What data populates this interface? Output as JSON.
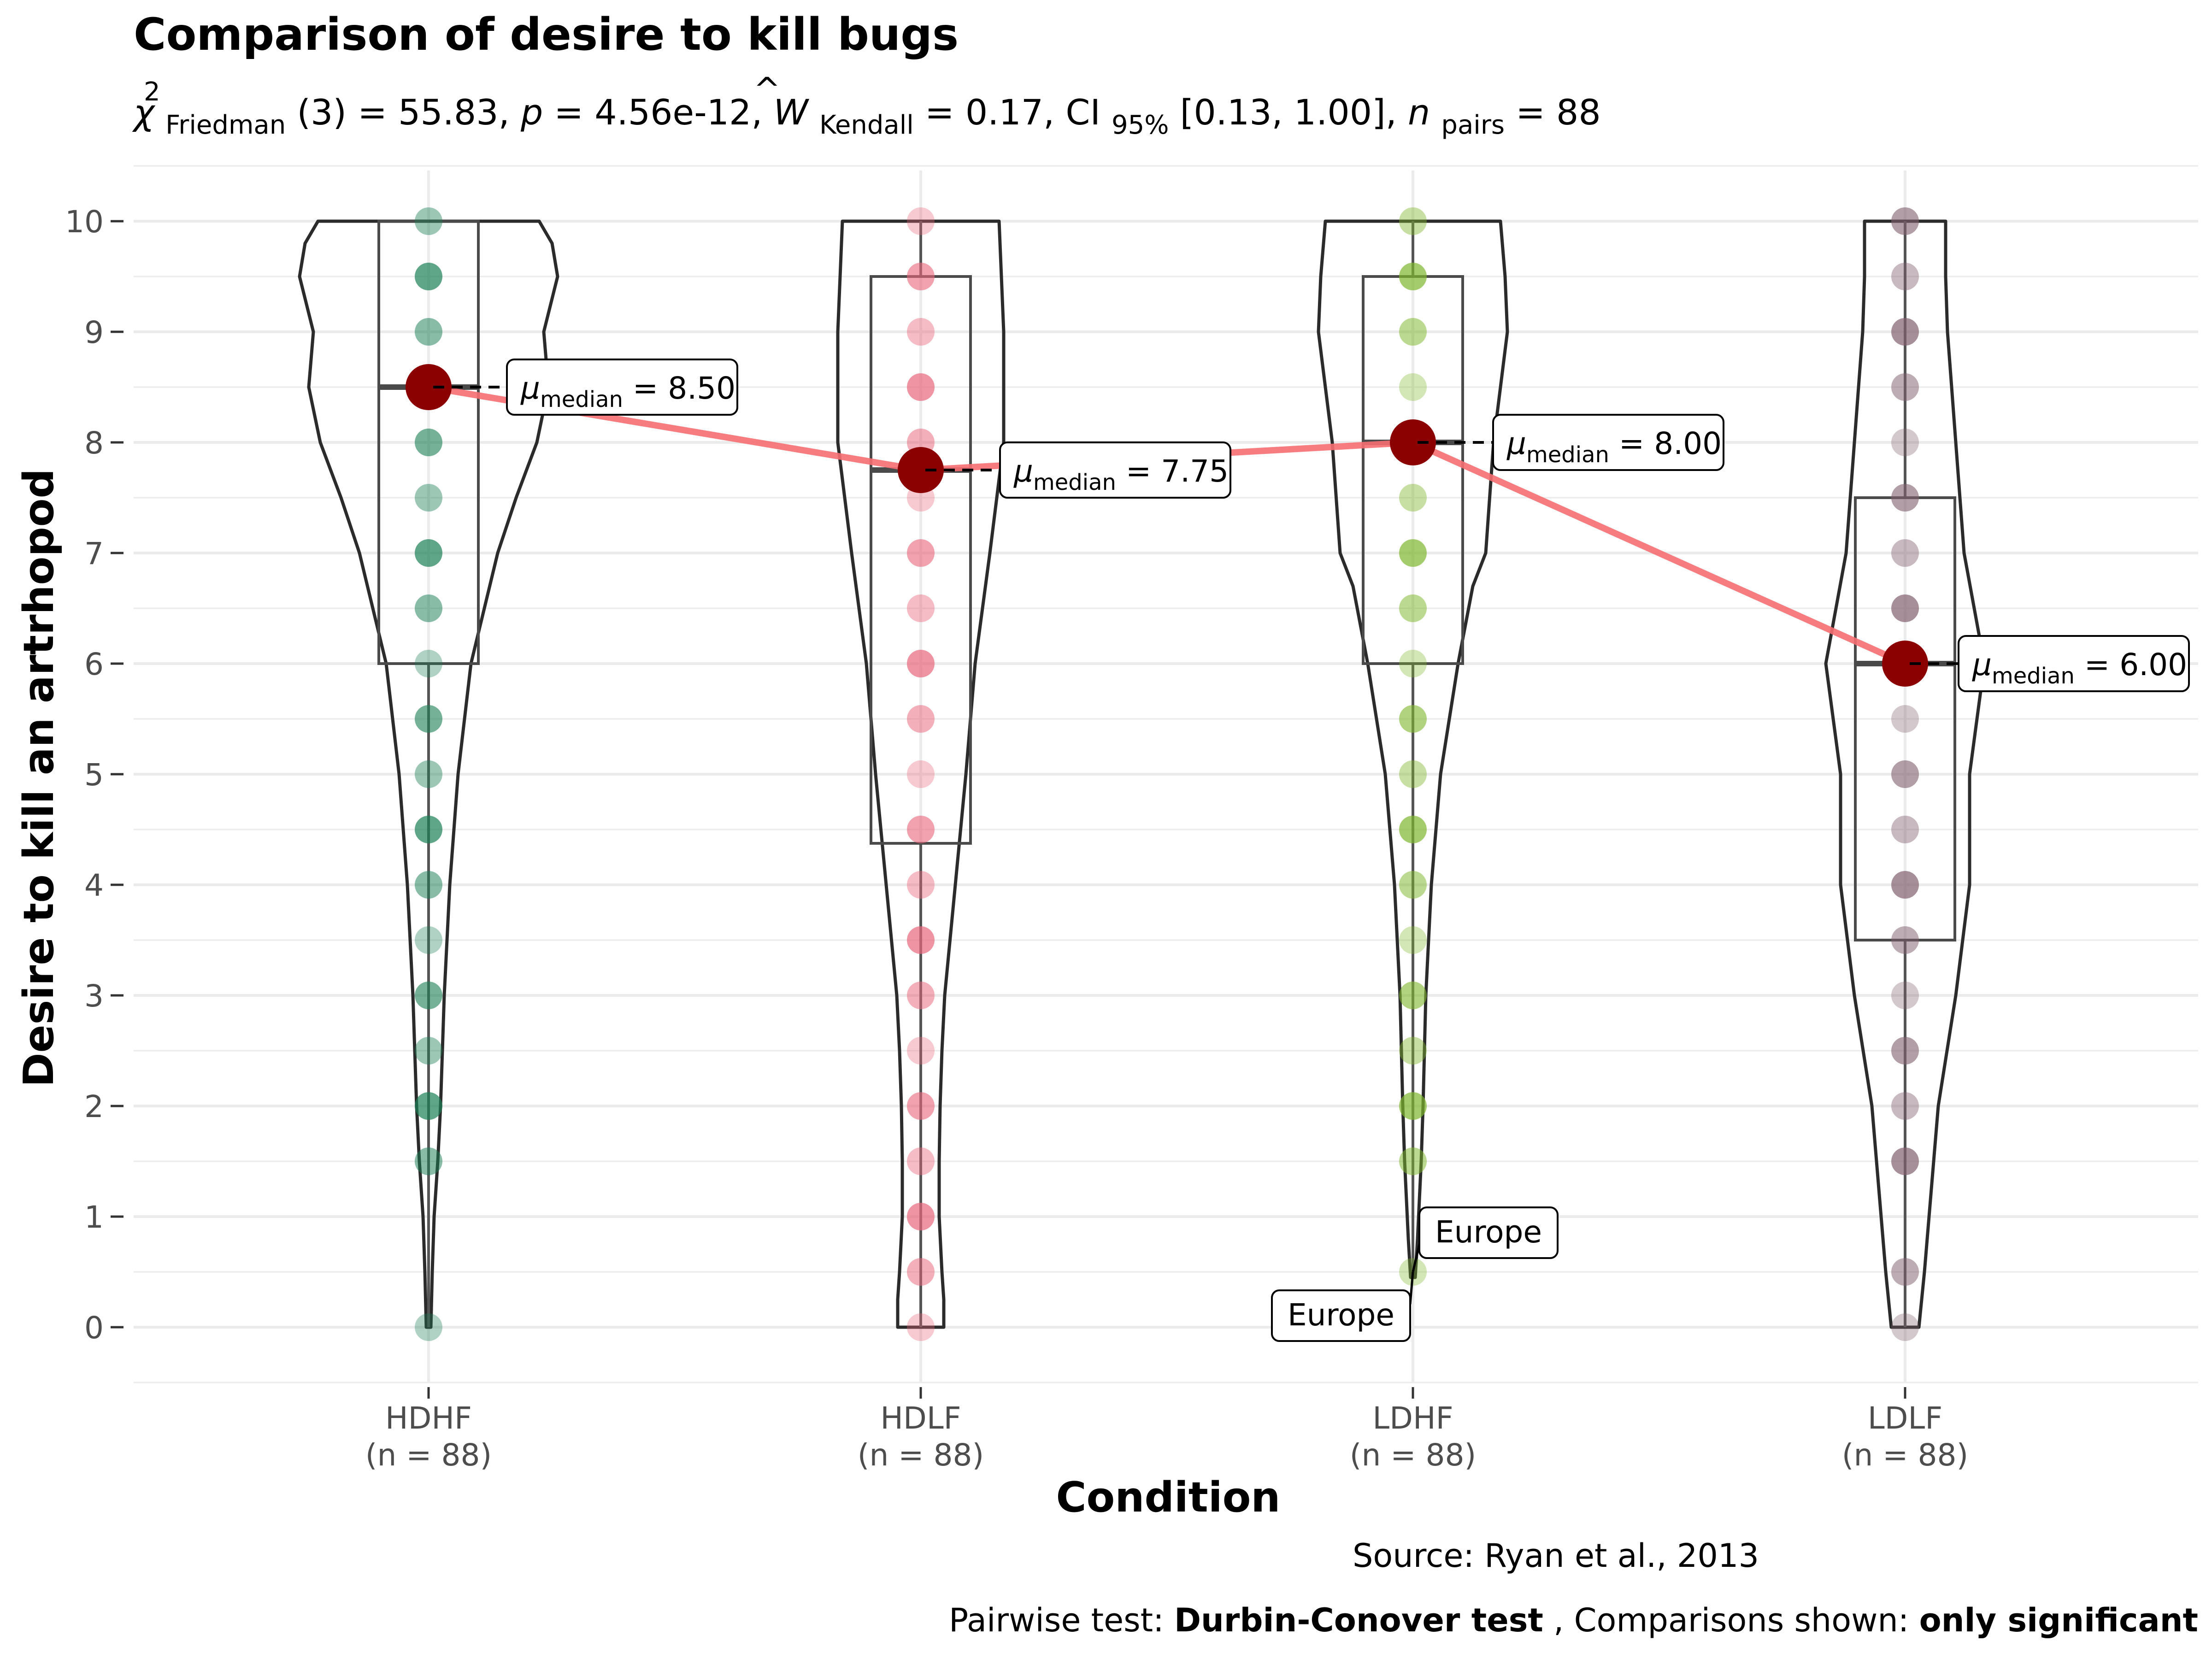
{
  "chart_data": {
    "type": "violin",
    "title": "Comparison of desire to kill bugs",
    "subtitle": {
      "chi": "χ",
      "chi_sup": "2",
      "chi_sub": "Friedman",
      "df_part": "(3) = 55.83, ",
      "p_label": "p",
      "p_part": " = 4.56e-12, ",
      "w_label": "W",
      "w_sub": "Kendall",
      "w_part": " = 0.17, CI",
      "ci_sub": "95%",
      "ci_part": " [0.13, 1.00], ",
      "n_label": "n",
      "n_sub": "pairs",
      "n_part": " = 88"
    },
    "xlabel": "Condition",
    "ylabel": "Desire to kill an artrhopod",
    "ylim": [
      -0.5,
      10.5
    ],
    "yticks": [
      "0",
      "1",
      "2",
      "3",
      "4",
      "5",
      "6",
      "7",
      "8",
      "9",
      "10"
    ],
    "categories": [
      "HDHF",
      "HDLF",
      "LDHF",
      "LDLF"
    ],
    "n_labels": [
      "(n = 88)",
      "(n = 88)",
      "(n = 88)",
      "(n = 88)"
    ],
    "colors": [
      "#1B7F55",
      "#E8677B",
      "#7FB62E",
      "#80606E"
    ],
    "medians": [
      8.5,
      7.75,
      8.0,
      6.0
    ],
    "median_labels": [
      {
        "mu": "μ",
        "sub": "median",
        "text": " = 8.50"
      },
      {
        "mu": "μ",
        "sub": "median",
        "text": " = 7.75"
      },
      {
        "mu": "μ",
        "sub": "median",
        "text": " = 8.00"
      },
      {
        "mu": "μ",
        "sub": "median",
        "text": " = 6.00"
      }
    ],
    "boxes": [
      {
        "q1": 6.0,
        "median": 8.5,
        "q3": 10.0
      },
      {
        "q1": 4.375,
        "median": 7.75,
        "q3": 9.5
      },
      {
        "q1": 6.0,
        "median": 8.0,
        "q3": 9.5
      },
      {
        "q1": 3.5,
        "median": 6.0,
        "q3": 7.5
      }
    ],
    "points": [
      [
        0,
        1.5,
        2,
        2.5,
        3,
        3.5,
        4,
        4.5,
        5,
        5.5,
        6,
        6.5,
        7,
        7.5,
        8,
        8.5,
        9,
        9.5,
        10
      ],
      [
        0,
        0.5,
        1,
        1.5,
        2,
        2.5,
        3,
        3.5,
        4,
        4.5,
        5,
        5.5,
        6,
        6.5,
        7,
        7.5,
        8,
        8.5,
        9,
        9.5,
        10
      ],
      [
        0.5,
        1.5,
        2,
        2.5,
        3,
        3.5,
        4,
        4.5,
        5,
        5.5,
        6,
        6.5,
        7,
        7.5,
        8,
        8.5,
        9,
        9.5,
        10
      ],
      [
        0,
        0.5,
        1.5,
        2,
        2.5,
        3,
        3.5,
        4,
        4.5,
        5,
        5.5,
        6,
        6.5,
        7,
        7.5,
        8,
        8.5,
        9,
        9.5,
        10
      ]
    ],
    "outlier_labels": [
      {
        "group": "LDHF",
        "value": 0.5,
        "text": "Europe"
      },
      {
        "group": "LDHF",
        "value": 0.5,
        "text": "Europe"
      }
    ],
    "grid": true,
    "caption": {
      "source": "Source: Ryan et al., 2013",
      "pairwise_prefix": "Pairwise test: ",
      "pairwise_test": "Durbin-Conover test",
      "comparisons_prefix": ", Comparisons shown: ",
      "comparisons_value": "only significant"
    }
  }
}
